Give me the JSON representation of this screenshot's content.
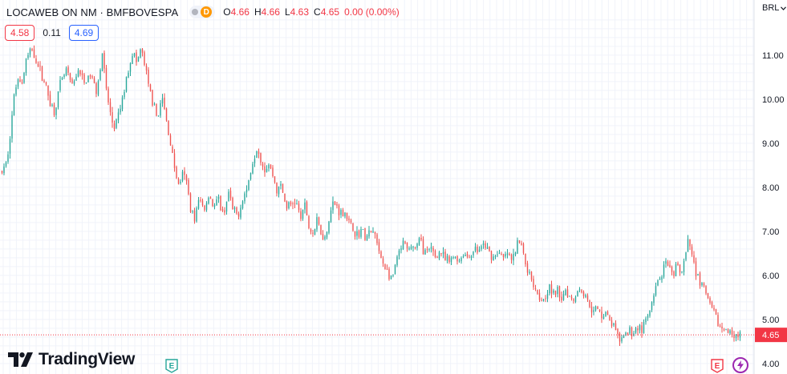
{
  "header": {
    "symbol": "LOCAWEB ON NM · BMFBOVESPA",
    "market_badge": "D",
    "open_label": "O",
    "open": "4.66",
    "high_label": "H",
    "high": "4.66",
    "low_label": "L",
    "low": "4.63",
    "close_label": "C",
    "close": "4.65",
    "change": "0.00 (0.00%)"
  },
  "quotes": {
    "bid": "4.58",
    "spread": "0.11",
    "ask": "4.69"
  },
  "currency": "BRL",
  "brand": "TradingView",
  "events": {
    "earnings_label": "E"
  },
  "colors": {
    "up": "#26a69a",
    "down": "#ef5350",
    "last_price": "#f23645",
    "grid": "#f0f3fa"
  },
  "chart_data": {
    "type": "candlestick",
    "y_ticks": [
      4.0,
      5.0,
      6.0,
      7.0,
      8.0,
      9.0,
      10.0,
      11.0
    ],
    "y_tick_labels": [
      "4.00",
      "5.00",
      "6.00",
      "7.00",
      "8.00",
      "9.00",
      "10.00",
      "11.00"
    ],
    "ylim": [
      3.98,
      11.58
    ],
    "last_price": 4.65,
    "last_price_label": "4.65",
    "grid": true,
    "price_path": [
      [
        0,
        8.35
      ],
      [
        5,
        8.5
      ],
      [
        10,
        9.2
      ],
      [
        15,
        10.05
      ],
      [
        20,
        10.55
      ],
      [
        25,
        10.35
      ],
      [
        30,
        10.9
      ],
      [
        38,
        11.15
      ],
      [
        45,
        10.75
      ],
      [
        52,
        10.45
      ],
      [
        58,
        10.05
      ],
      [
        65,
        9.7
      ],
      [
        72,
        10.3
      ],
      [
        80,
        10.65
      ],
      [
        88,
        10.25
      ],
      [
        95,
        10.7
      ],
      [
        102,
        10.35
      ],
      [
        110,
        10.55
      ],
      [
        118,
        10.2
      ],
      [
        125,
        11.05
      ],
      [
        130,
        10.2
      ],
      [
        136,
        9.55
      ],
      [
        140,
        9.35
      ],
      [
        145,
        9.6
      ],
      [
        152,
        10.15
      ],
      [
        158,
        10.75
      ],
      [
        163,
        11.1
      ],
      [
        168,
        10.8
      ],
      [
        173,
        11.15
      ],
      [
        178,
        10.75
      ],
      [
        183,
        10.25
      ],
      [
        188,
        9.95
      ],
      [
        192,
        9.6
      ],
      [
        196,
        9.75
      ],
      [
        200,
        10.0
      ],
      [
        204,
        9.6
      ],
      [
        208,
        9.2
      ],
      [
        212,
        8.8
      ],
      [
        216,
        8.35
      ],
      [
        220,
        8.05
      ],
      [
        225,
        8.3
      ],
      [
        230,
        8.1
      ],
      [
        235,
        7.55
      ],
      [
        240,
        7.3
      ],
      [
        246,
        7.75
      ],
      [
        252,
        7.5
      ],
      [
        258,
        7.85
      ],
      [
        264,
        7.55
      ],
      [
        270,
        7.7
      ],
      [
        276,
        7.35
      ],
      [
        282,
        7.9
      ],
      [
        288,
        7.45
      ],
      [
        294,
        7.35
      ],
      [
        300,
        7.75
      ],
      [
        306,
        8.0
      ],
      [
        312,
        8.55
      ],
      [
        318,
        8.95
      ],
      [
        322,
        8.7
      ],
      [
        327,
        8.4
      ],
      [
        332,
        8.55
      ],
      [
        338,
        8.25
      ],
      [
        343,
        7.9
      ],
      [
        348,
        8.05
      ],
      [
        354,
        7.55
      ],
      [
        360,
        7.6
      ],
      [
        366,
        7.7
      ],
      [
        372,
        7.3
      ],
      [
        378,
        7.6
      ],
      [
        383,
        7.05
      ],
      [
        388,
        6.95
      ],
      [
        393,
        7.25
      ],
      [
        398,
        6.95
      ],
      [
        403,
        6.85
      ],
      [
        408,
        7.35
      ],
      [
        413,
        7.65
      ],
      [
        418,
        7.55
      ],
      [
        423,
        7.4
      ],
      [
        428,
        7.45
      ],
      [
        433,
        7.15
      ],
      [
        438,
        7.05
      ],
      [
        443,
        6.9
      ],
      [
        448,
        7.05
      ],
      [
        453,
        6.85
      ],
      [
        458,
        6.95
      ],
      [
        464,
        7.0
      ],
      [
        470,
        6.5
      ],
      [
        476,
        6.25
      ],
      [
        481,
        6.05
      ],
      [
        486,
        5.85
      ],
      [
        491,
        6.3
      ],
      [
        496,
        6.55
      ],
      [
        501,
        6.75
      ],
      [
        506,
        6.5
      ],
      [
        511,
        6.7
      ],
      [
        516,
        6.6
      ],
      [
        521,
        6.85
      ],
      [
        526,
        6.55
      ],
      [
        531,
        6.5
      ],
      [
        536,
        6.6
      ],
      [
        541,
        6.4
      ],
      [
        546,
        6.55
      ],
      [
        552,
        6.35
      ],
      [
        558,
        6.3
      ],
      [
        564,
        6.45
      ],
      [
        570,
        6.35
      ],
      [
        576,
        6.5
      ],
      [
        582,
        6.4
      ],
      [
        588,
        6.6
      ],
      [
        594,
        6.55
      ],
      [
        600,
        6.7
      ],
      [
        606,
        6.55
      ],
      [
        612,
        6.4
      ],
      [
        618,
        6.55
      ],
      [
        624,
        6.35
      ],
      [
        630,
        6.5
      ],
      [
        636,
        6.3
      ],
      [
        642,
        6.7
      ],
      [
        647,
        6.75
      ],
      [
        652,
        6.3
      ],
      [
        657,
        6.05
      ],
      [
        662,
        5.85
      ],
      [
        667,
        5.65
      ],
      [
        672,
        5.45
      ],
      [
        677,
        5.55
      ],
      [
        682,
        5.75
      ],
      [
        687,
        5.55
      ],
      [
        692,
        5.65
      ],
      [
        697,
        5.5
      ],
      [
        702,
        5.7
      ],
      [
        707,
        5.55
      ],
      [
        712,
        5.45
      ],
      [
        717,
        5.65
      ],
      [
        722,
        5.7
      ],
      [
        727,
        5.5
      ],
      [
        732,
        5.4
      ],
      [
        737,
        5.15
      ],
      [
        742,
        5.25
      ],
      [
        747,
        5.1
      ],
      [
        752,
        5.2
      ],
      [
        757,
        4.95
      ],
      [
        762,
        4.9
      ],
      [
        767,
        4.6
      ],
      [
        772,
        4.5
      ],
      [
        777,
        4.65
      ],
      [
        782,
        4.75
      ],
      [
        787,
        4.7
      ],
      [
        792,
        4.85
      ],
      [
        797,
        4.75
      ],
      [
        802,
        4.95
      ],
      [
        807,
        5.15
      ],
      [
        812,
        5.45
      ],
      [
        817,
        5.85
      ],
      [
        822,
        6.0
      ],
      [
        827,
        6.25
      ],
      [
        832,
        6.1
      ],
      [
        837,
        5.95
      ],
      [
        842,
        6.3
      ],
      [
        847,
        6.05
      ],
      [
        852,
        6.45
      ],
      [
        856,
        6.8
      ],
      [
        860,
        6.45
      ],
      [
        864,
        6.15
      ],
      [
        868,
        5.95
      ],
      [
        872,
        5.8
      ],
      [
        876,
        5.65
      ],
      [
        880,
        5.45
      ],
      [
        884,
        5.25
      ],
      [
        888,
        5.1
      ],
      [
        892,
        4.95
      ],
      [
        896,
        4.8
      ],
      [
        900,
        4.75
      ],
      [
        904,
        4.72
      ],
      [
        908,
        4.68
      ],
      [
        912,
        4.7
      ],
      [
        916,
        4.66
      ],
      [
        920,
        4.65
      ]
    ]
  }
}
